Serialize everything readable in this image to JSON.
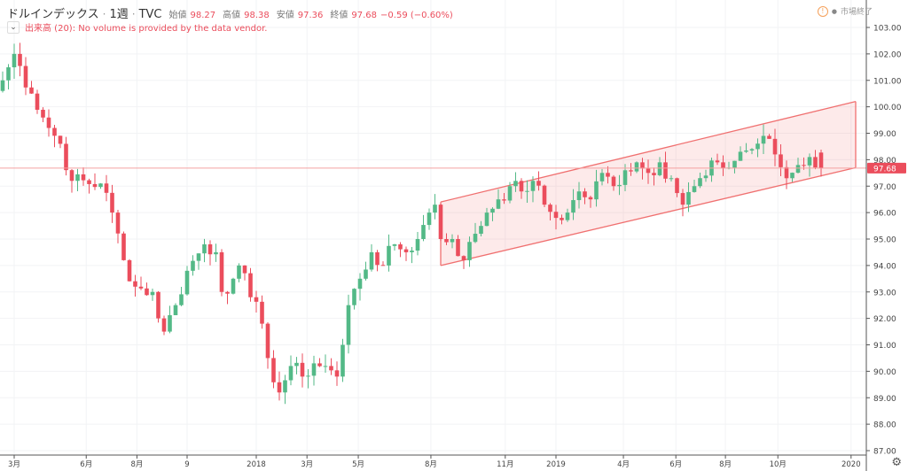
{
  "header": {
    "title": "ドルインデックス",
    "interval": "1週",
    "source": "TVC",
    "sep": "·",
    "open_label": "始値",
    "open": "98.27",
    "high_label": "高値",
    "high": "98.38",
    "low_label": "安値",
    "low": "97.36",
    "close_label": "終値",
    "close": "97.68",
    "change": "−0.59 (−0.60%)"
  },
  "volume": {
    "toggle": "⌄",
    "message": "出来高 (20): No volume is provided by the data vendor."
  },
  "market_status": {
    "icon": "!",
    "dot": "●",
    "text": "市場終了"
  },
  "settings_icon": "⚙",
  "colors": {
    "up": "#53b987",
    "down": "#eb4d5c",
    "channel": "#f07070",
    "channel_fill": "rgba(240,112,112,0.15)",
    "price_line": "#f4a0a0"
  },
  "chart_data": {
    "type": "candlestick",
    "y_ticks": [
      "103.00",
      "102.00",
      "101.00",
      "100.00",
      "99.00",
      "98.00",
      "97.00",
      "96.00",
      "95.00",
      "94.00",
      "93.00",
      "92.00",
      "91.00",
      "90.00",
      "89.00",
      "88.00",
      "87.00"
    ],
    "ylim": [
      87,
      103
    ],
    "x_ticks": [
      {
        "label": "3月",
        "week": 2
      },
      {
        "label": "6月",
        "week": 14.5
      },
      {
        "label": "8月",
        "week": 23.3
      },
      {
        "label": "9",
        "week": 32
      },
      {
        "label": "2018",
        "week": 44
      },
      {
        "label": "3月",
        "week": 52.8
      },
      {
        "label": "5月",
        "week": 61.7
      },
      {
        "label": "8月",
        "week": 74.3
      },
      {
        "label": "11月",
        "week": 87.2
      },
      {
        "label": "2019",
        "week": 96
      },
      {
        "label": "4月",
        "week": 107.7
      },
      {
        "label": "6月",
        "week": 116.8
      },
      {
        "label": "8月",
        "week": 125.4
      },
      {
        "label": "10月",
        "week": 134.5
      },
      {
        "label": "2020",
        "week": 147.2
      }
    ],
    "close_anchors": [
      [
        0,
        101.0
      ],
      [
        2,
        102
      ],
      [
        5,
        100.5
      ],
      [
        8,
        99.2
      ],
      [
        10,
        98.6
      ],
      [
        12,
        97.2
      ],
      [
        17,
        97.1
      ],
      [
        19,
        96
      ],
      [
        21,
        94.2
      ],
      [
        23,
        93.2
      ],
      [
        26,
        93
      ],
      [
        27,
        92
      ],
      [
        28,
        91.5
      ],
      [
        30,
        92.5
      ],
      [
        32,
        93.8
      ],
      [
        35,
        94.8
      ],
      [
        37,
        94.5
      ],
      [
        38,
        93
      ],
      [
        40,
        93.5
      ],
      [
        41,
        94
      ],
      [
        43,
        92.8
      ],
      [
        45,
        91.8
      ],
      [
        46,
        90.5
      ],
      [
        48,
        89.2
      ],
      [
        50,
        90.2
      ],
      [
        52,
        89.8
      ],
      [
        54,
        90.3
      ],
      [
        56,
        90.2
      ],
      [
        58,
        89.8
      ],
      [
        59,
        91
      ],
      [
        60,
        92.5
      ],
      [
        62,
        93.5
      ],
      [
        64,
        94.5
      ],
      [
        66,
        94
      ],
      [
        68,
        94.8
      ],
      [
        70,
        94.5
      ],
      [
        72,
        95
      ],
      [
        74,
        96
      ],
      [
        75,
        96.3
      ],
      [
        76,
        95
      ],
      [
        78,
        95
      ],
      [
        80,
        94.2
      ],
      [
        82,
        95.2
      ],
      [
        84,
        96
      ],
      [
        86,
        96.5
      ],
      [
        88,
        97
      ],
      [
        90,
        96.8
      ],
      [
        92,
        97.2
      ],
      [
        94,
        96.3
      ],
      [
        96,
        95.8
      ],
      [
        98,
        96
      ],
      [
        100,
        96.8
      ],
      [
        102,
        96.5
      ],
      [
        104,
        97.5
      ],
      [
        106,
        97
      ],
      [
        108,
        97.6
      ],
      [
        110,
        97.9
      ],
      [
        112,
        97.5
      ],
      [
        114,
        97.9
      ],
      [
        116,
        97.3
      ],
      [
        118,
        96.3
      ],
      [
        120,
        97
      ],
      [
        122,
        97.4
      ],
      [
        124,
        97.9
      ],
      [
        126,
        97.7
      ],
      [
        128,
        98.3
      ],
      [
        130,
        98.4
      ],
      [
        132,
        98.9
      ],
      [
        134,
        98.2
      ],
      [
        136,
        97.3
      ],
      [
        138,
        97.8
      ],
      [
        140,
        98.1
      ],
      [
        142,
        97.68
      ]
    ],
    "last_candle": {
      "open": 98.27,
      "high": 98.38,
      "low": 97.36,
      "close": 97.68
    },
    "last_price": "97.68",
    "channel": {
      "upper": [
        [
          76,
          96.4
        ],
        [
          148,
          100.2
        ]
      ],
      "lower": [
        [
          76,
          94.0
        ],
        [
          148,
          97.7
        ]
      ]
    }
  }
}
